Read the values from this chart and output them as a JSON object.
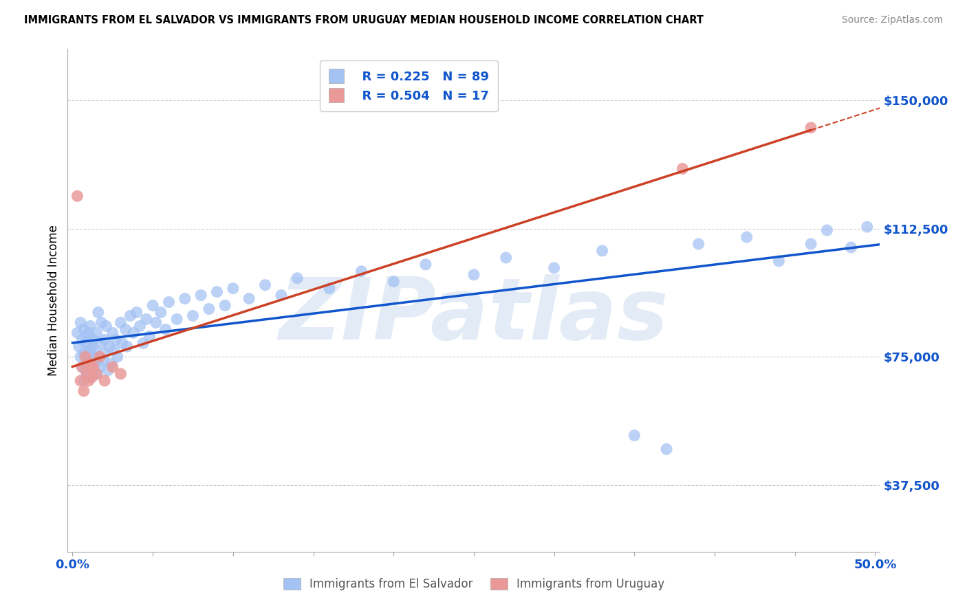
{
  "title": "IMMIGRANTS FROM EL SALVADOR VS IMMIGRANTS FROM URUGUAY MEDIAN HOUSEHOLD INCOME CORRELATION CHART",
  "source": "Source: ZipAtlas.com",
  "ylabel": "Median Household Income",
  "xlim": [
    -0.003,
    0.503
  ],
  "ylim": [
    18000,
    165000
  ],
  "yticks": [
    37500,
    75000,
    112500,
    150000
  ],
  "ytick_labels": [
    "$37,500",
    "$75,000",
    "$112,500",
    "$150,000"
  ],
  "blue_dot_color": "#a4c2f4",
  "pink_dot_color": "#ea9999",
  "blue_line_color": "#1155cc",
  "pink_line_color": "#cc4125",
  "axis_label_color": "#1155cc",
  "grid_color": "#cccccc",
  "watermark_text": "ZIPatlas",
  "background_color": "#ffffff",
  "legend_label_blue": "Immigrants from El Salvador",
  "legend_label_pink": "Immigrants from Uruguay",
  "el_salvador_x": [
    0.003,
    0.004,
    0.005,
    0.005,
    0.006,
    0.006,
    0.007,
    0.007,
    0.007,
    0.008,
    0.008,
    0.009,
    0.009,
    0.009,
    0.01,
    0.01,
    0.01,
    0.01,
    0.011,
    0.011,
    0.012,
    0.012,
    0.013,
    0.013,
    0.014,
    0.014,
    0.015,
    0.015,
    0.016,
    0.016,
    0.017,
    0.018,
    0.018,
    0.019,
    0.02,
    0.02,
    0.021,
    0.022,
    0.023,
    0.024,
    0.025,
    0.026,
    0.027,
    0.028,
    0.03,
    0.031,
    0.033,
    0.034,
    0.036,
    0.038,
    0.04,
    0.042,
    0.044,
    0.046,
    0.048,
    0.05,
    0.052,
    0.055,
    0.058,
    0.06,
    0.065,
    0.07,
    0.075,
    0.08,
    0.085,
    0.09,
    0.095,
    0.1,
    0.11,
    0.12,
    0.13,
    0.14,
    0.16,
    0.18,
    0.2,
    0.22,
    0.25,
    0.27,
    0.3,
    0.33,
    0.35,
    0.37,
    0.39,
    0.42,
    0.44,
    0.46,
    0.47,
    0.485,
    0.495
  ],
  "el_salvador_y": [
    82000,
    78000,
    75000,
    85000,
    72000,
    80000,
    68000,
    76000,
    83000,
    71000,
    79000,
    74000,
    81000,
    70000,
    77000,
    73000,
    82000,
    69000,
    76000,
    84000,
    71000,
    78000,
    75000,
    80000,
    73000,
    77000,
    82000,
    70000,
    75000,
    88000,
    72000,
    79000,
    85000,
    74000,
    80000,
    76000,
    84000,
    71000,
    78000,
    73000,
    82000,
    77000,
    80000,
    75000,
    85000,
    79000,
    83000,
    78000,
    87000,
    82000,
    88000,
    84000,
    79000,
    86000,
    81000,
    90000,
    85000,
    88000,
    83000,
    91000,
    86000,
    92000,
    87000,
    93000,
    89000,
    94000,
    90000,
    95000,
    92000,
    96000,
    93000,
    98000,
    95000,
    100000,
    97000,
    102000,
    99000,
    104000,
    101000,
    106000,
    52000,
    48000,
    108000,
    110000,
    103000,
    108000,
    112000,
    107000,
    113000
  ],
  "uruguay_x": [
    0.003,
    0.005,
    0.006,
    0.007,
    0.008,
    0.009,
    0.01,
    0.011,
    0.012,
    0.013,
    0.015,
    0.017,
    0.02,
    0.025,
    0.03,
    0.38,
    0.46
  ],
  "uruguay_y": [
    122000,
    68000,
    72000,
    65000,
    75000,
    70000,
    68000,
    73000,
    69000,
    72000,
    70000,
    75000,
    68000,
    72000,
    70000,
    130000,
    142000
  ]
}
